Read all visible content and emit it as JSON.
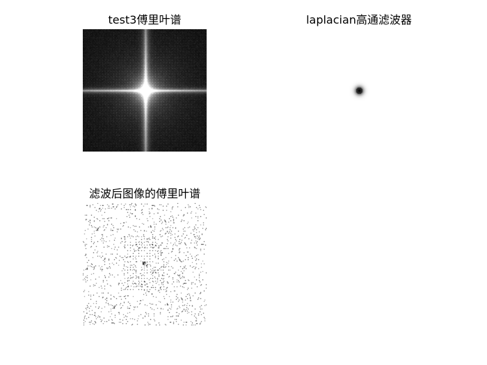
{
  "figure": {
    "panels": [
      {
        "title": "test3傅里叶谱",
        "kind": "fourier-spectrum"
      },
      {
        "title": "laplacian高通滤波器",
        "kind": "laplacian-filter"
      },
      {
        "title": "滤波后图像的傅里叶谱",
        "kind": "filtered-spectrum"
      }
    ]
  }
}
